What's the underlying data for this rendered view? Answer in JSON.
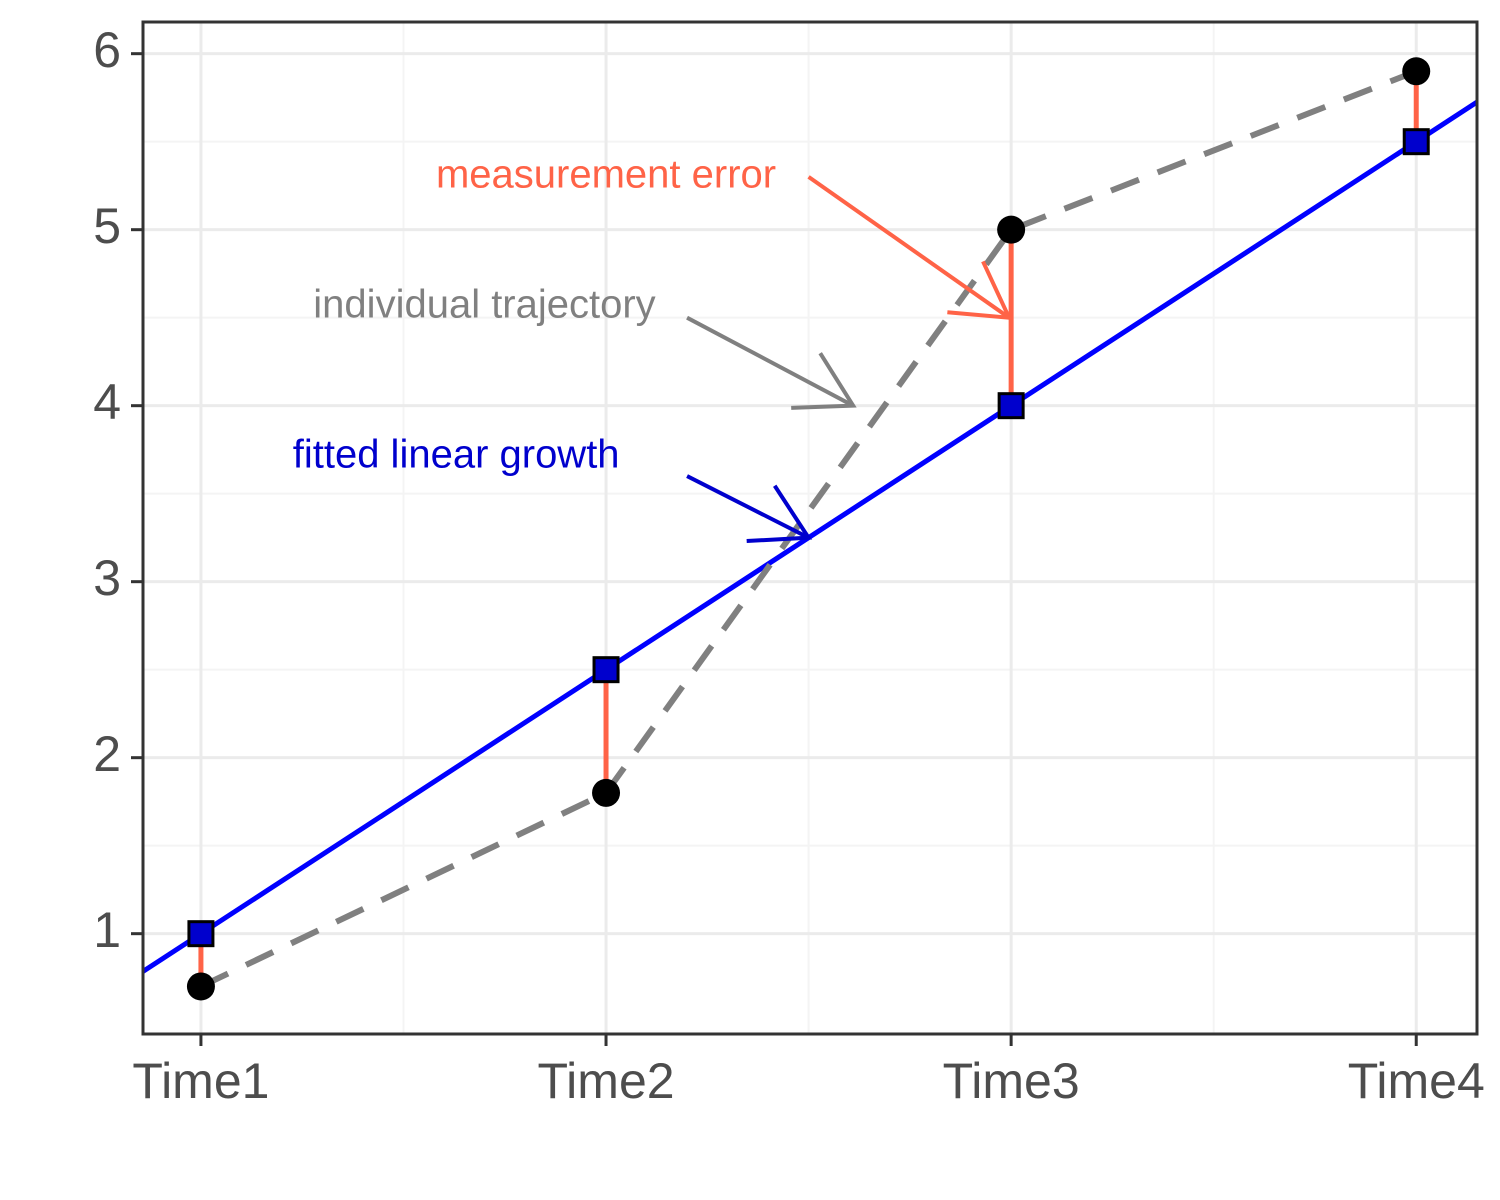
{
  "chart_data": {
    "type": "line",
    "title": "",
    "xlabel": "",
    "ylabel": "",
    "categories": [
      "Time1",
      "Time2",
      "Time3",
      "Time4"
    ],
    "xlim": [
      0.857,
      4.15
    ],
    "ylim": [
      0.43,
      6.18
    ],
    "y_ticks": [
      1,
      2,
      3,
      4,
      5,
      6
    ],
    "grid": true,
    "series": [
      {
        "key": "observed",
        "values": [
          0.7,
          1.8,
          5.0,
          5.9
        ],
        "color": "#808080",
        "line_style": "dashed",
        "marker": "circle",
        "marker_color": "#000000"
      },
      {
        "key": "fitted",
        "values": [
          1.0,
          2.5,
          4.0,
          5.5
        ],
        "color": "#0000ff",
        "line_style": "solid",
        "marker": "square",
        "marker_color": "#0000cd",
        "fit_line": {
          "intercept": -0.5,
          "slope": 1.5
        }
      }
    ],
    "error_segments_color": "#ff6347",
    "annotations": [
      {
        "key": "measurement",
        "text": "measurement error",
        "color": "#ff6347",
        "label_at": [
          2.0,
          5.3
        ],
        "arrow_from": [
          2.5,
          5.3
        ],
        "arrow_to": [
          2.995,
          4.5
        ]
      },
      {
        "key": "trajectory",
        "text": "individual trajectory",
        "color": "#808080",
        "label_at": [
          1.7,
          4.56
        ],
        "arrow_from": [
          2.2,
          4.5
        ],
        "arrow_to": [
          2.61,
          4.0
        ]
      },
      {
        "key": "fitted",
        "text": "fitted linear growth",
        "color": "#0000cd",
        "label_at": [
          1.63,
          3.71
        ],
        "arrow_from": [
          2.2,
          3.6
        ],
        "arrow_to": [
          2.5,
          3.25
        ]
      }
    ],
    "colors": {
      "panel_border": "#333333",
      "grid_major": "#ebebeb",
      "grid_minor": "#f4f4f4",
      "tick_label": "#4d4d4d"
    }
  }
}
